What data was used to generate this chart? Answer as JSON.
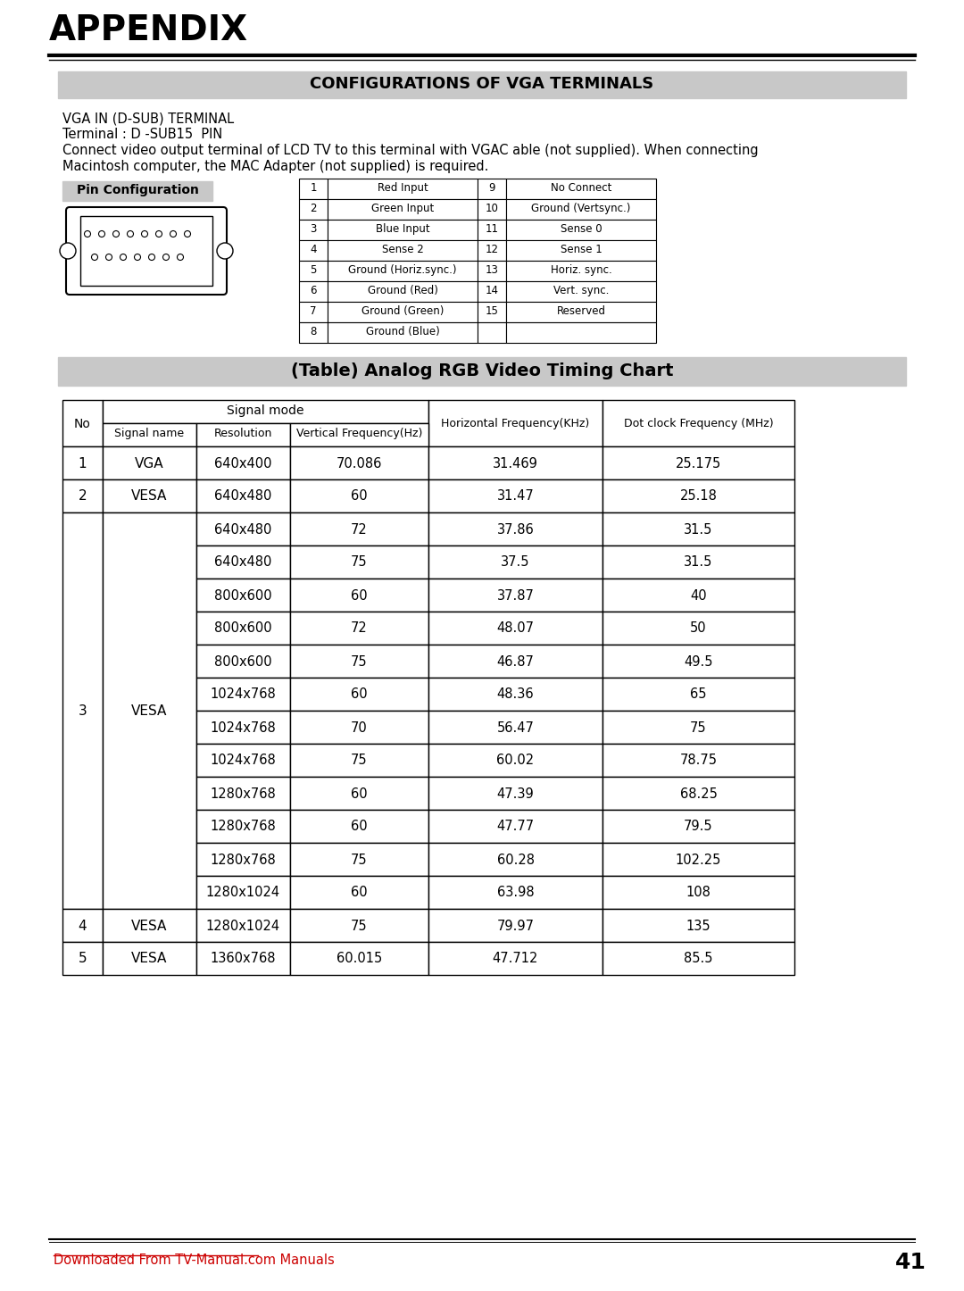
{
  "title": "APPENDIX",
  "section1_title": "CONFIGURATIONS OF VGA TERMINALS",
  "vga_header": "VGA IN (D-SUB) TERMINAL",
  "vga_line2": "Terminal : D -SUB15  PIN",
  "vga_line3": "Connect video output terminal of LCD TV to this terminal with VGAC able (not supplied). When connecting",
  "vga_line4": "Macintosh computer, the MAC Adapter (not supplied) is required.",
  "pin_config_label": "Pin Configuration",
  "pin_table": [
    [
      "1",
      "Red Input",
      "9",
      "No Connect"
    ],
    [
      "2",
      "Green Input",
      "10",
      "Ground (Vertsync.)"
    ],
    [
      "3",
      "Blue Input",
      "11",
      "Sense 0"
    ],
    [
      "4",
      "Sense 2",
      "12",
      "Sense 1"
    ],
    [
      "5",
      "Ground (Horiz.sync.)",
      "13",
      "Horiz. sync."
    ],
    [
      "6",
      "Ground (Red)",
      "14",
      "Vert. sync."
    ],
    [
      "7",
      "Ground (Green)",
      "15",
      "Reserved"
    ],
    [
      "8",
      "Ground (Blue)",
      "",
      ""
    ]
  ],
  "section2_title": "(Table) Analog RGB Video Timing Chart",
  "timing_signal_mode_header": "Signal mode",
  "timing_rows": [
    [
      "1",
      "VGA",
      "640x400",
      "70.086",
      "31.469",
      "25.175"
    ],
    [
      "2",
      "VESA",
      "640x480",
      "60",
      "31.47",
      "25.18"
    ],
    [
      "3",
      "VESA",
      "640x480",
      "72",
      "37.86",
      "31.5"
    ],
    [
      "3",
      "VESA",
      "640x480",
      "75",
      "37.5",
      "31.5"
    ],
    [
      "3",
      "VESA",
      "800x600",
      "60",
      "37.87",
      "40"
    ],
    [
      "3",
      "VESA",
      "800x600",
      "72",
      "48.07",
      "50"
    ],
    [
      "3",
      "VESA",
      "800x600",
      "75",
      "46.87",
      "49.5"
    ],
    [
      "3",
      "VESA",
      "1024x768",
      "60",
      "48.36",
      "65"
    ],
    [
      "3",
      "VESA",
      "1024x768",
      "70",
      "56.47",
      "75"
    ],
    [
      "3",
      "VESA",
      "1024x768",
      "75",
      "60.02",
      "78.75"
    ],
    [
      "3",
      "VESA",
      "1280x768",
      "60",
      "47.39",
      "68.25"
    ],
    [
      "3",
      "VESA",
      "1280x768",
      "60",
      "47.77",
      "79.5"
    ],
    [
      "3",
      "VESA",
      "1280x768",
      "75",
      "60.28",
      "102.25"
    ],
    [
      "3",
      "VESA",
      "1280x1024",
      "60",
      "63.98",
      "108"
    ],
    [
      "4",
      "VESA",
      "1280x1024",
      "75",
      "79.97",
      "135"
    ],
    [
      "5",
      "VESA",
      "1360x768",
      "60.015",
      "47.712",
      "85.5"
    ]
  ],
  "footer_link": "Downloaded From TV-Manual.com Manuals",
  "footer_page": "41",
  "bg_color": "#ffffff",
  "section_header_bg": "#c8c8c8",
  "pin_label_bg": "#c8c8c8",
  "footer_link_color": "#cc0000"
}
